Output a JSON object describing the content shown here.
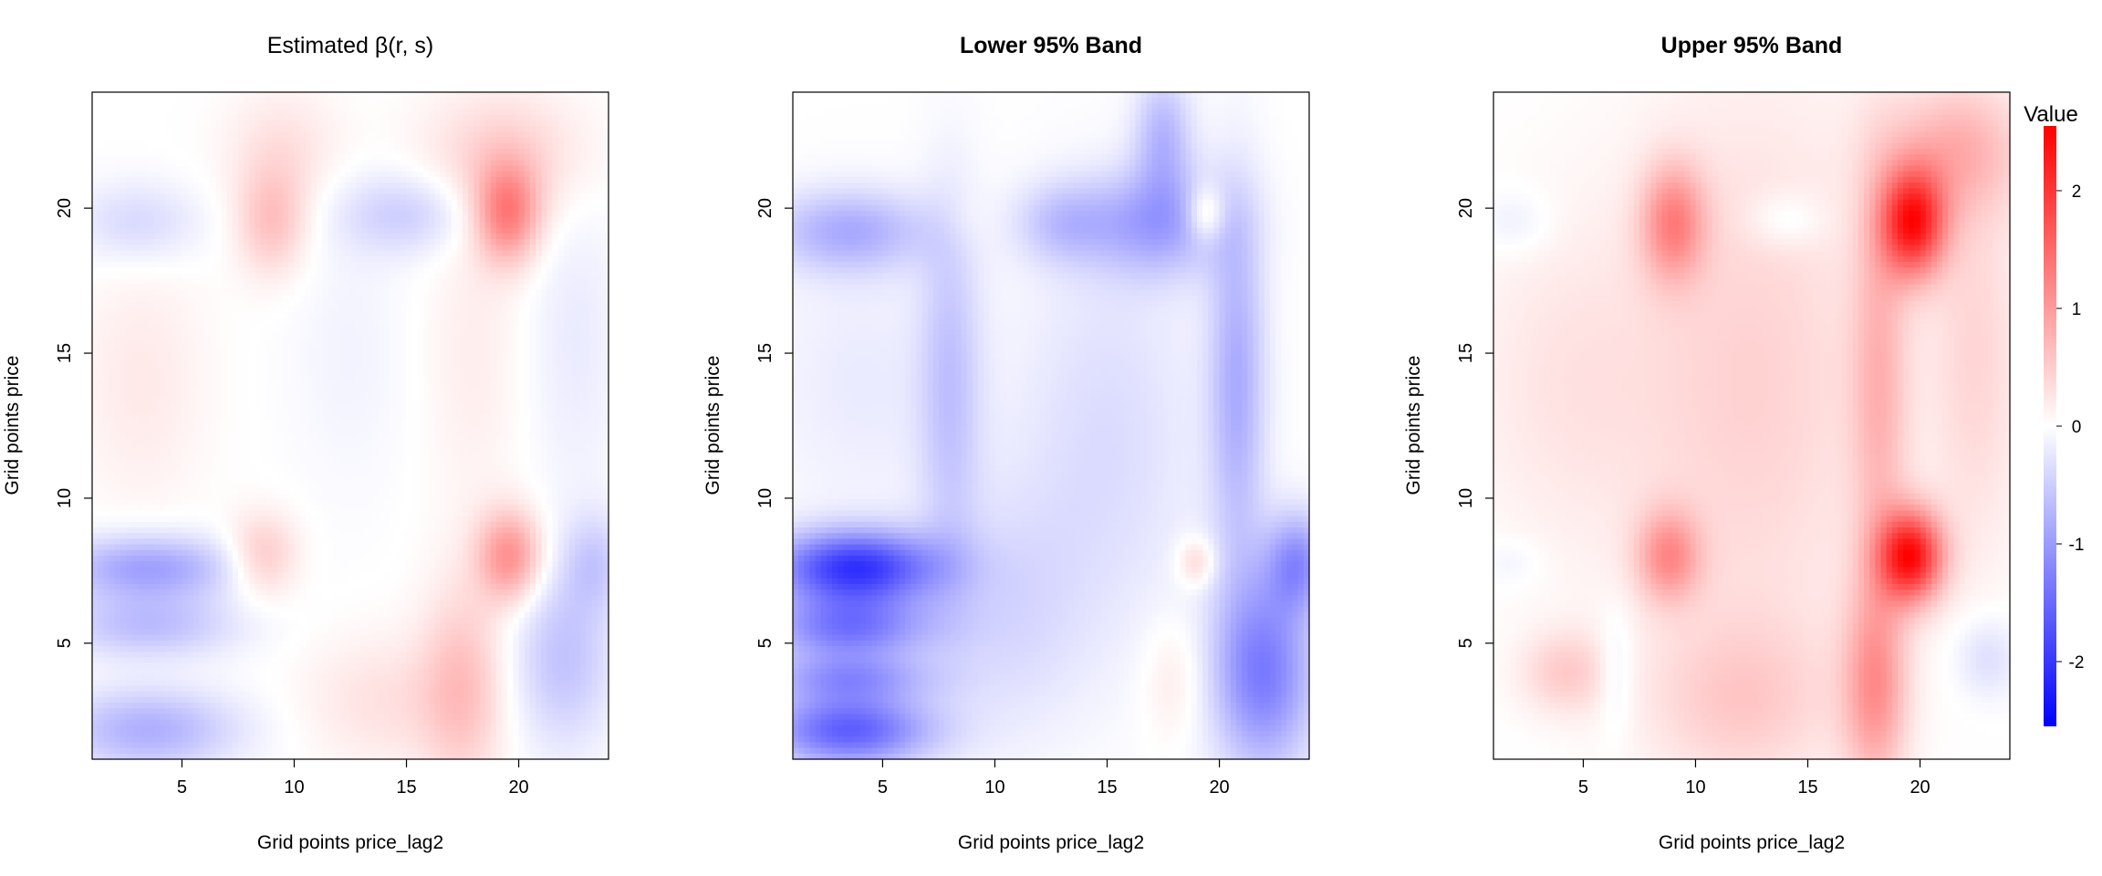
{
  "chart_data": [
    {
      "type": "heatmap",
      "title": "Estimated β(r, s)",
      "title_bold": false,
      "xlabel": "Grid points price_lag2",
      "ylabel": "Grid points price",
      "xlim": [
        1,
        24
      ],
      "ylim": [
        1,
        24
      ],
      "x_ticks": [
        "5",
        "10",
        "15",
        "20"
      ],
      "y_ticks": [
        "5",
        "10",
        "15",
        "20"
      ],
      "blobs": [
        {
          "x": 19.5,
          "y": 19.8,
          "sx": 1.0,
          "sy": 1.2,
          "v": 1.2
        },
        {
          "x": 9.0,
          "y": 19.5,
          "sx": 1.1,
          "sy": 1.3,
          "v": 0.6
        },
        {
          "x": 19.5,
          "y": 21.8,
          "sx": 2.6,
          "sy": 1.6,
          "v": 0.45
        },
        {
          "x": 9.5,
          "y": 22.0,
          "sx": 1.8,
          "sy": 1.5,
          "v": 0.3
        },
        {
          "x": 19.6,
          "y": 8.0,
          "sx": 1.0,
          "sy": 1.1,
          "v": 1.1
        },
        {
          "x": 8.6,
          "y": 8.0,
          "sx": 1.1,
          "sy": 1.0,
          "v": 0.6
        },
        {
          "x": 17.5,
          "y": 3.5,
          "sx": 1.3,
          "sy": 2.5,
          "v": 0.6
        },
        {
          "x": 14.0,
          "y": 3.0,
          "sx": 2.5,
          "sy": 1.6,
          "v": 0.3
        },
        {
          "x": 3.2,
          "y": 14.0,
          "sx": 2.0,
          "sy": 3.0,
          "v": 0.22
        },
        {
          "x": 18.0,
          "y": 15.0,
          "sx": 1.6,
          "sy": 4.0,
          "v": 0.18
        },
        {
          "x": 15.0,
          "y": 19.8,
          "sx": 2.2,
          "sy": 1.0,
          "v": -0.5
        },
        {
          "x": 3.0,
          "y": 19.5,
          "sx": 2.0,
          "sy": 1.0,
          "v": -0.4
        },
        {
          "x": 3.5,
          "y": 7.6,
          "sx": 2.8,
          "sy": 0.8,
          "v": -0.95
        },
        {
          "x": 3.5,
          "y": 5.6,
          "sx": 2.8,
          "sy": 0.8,
          "v": -0.65
        },
        {
          "x": 3.5,
          "y": 2.0,
          "sx": 2.8,
          "sy": 1.0,
          "v": -0.8
        },
        {
          "x": 22.0,
          "y": 4.5,
          "sx": 1.6,
          "sy": 2.2,
          "v": -0.6
        },
        {
          "x": 23.4,
          "y": 7.8,
          "sx": 1.0,
          "sy": 1.2,
          "v": -0.45
        },
        {
          "x": 22.5,
          "y": 15.5,
          "sx": 1.6,
          "sy": 4.0,
          "v": -0.2
        },
        {
          "x": 12.5,
          "y": 15.0,
          "sx": 2.0,
          "sy": 3.5,
          "v": -0.12
        }
      ]
    },
    {
      "type": "heatmap",
      "title": "Lower 95% Band",
      "title_bold": true,
      "xlabel": "Grid points price_lag2",
      "ylabel": "Grid points price",
      "xlim": [
        1,
        24
      ],
      "ylim": [
        1,
        24
      ],
      "x_ticks": [
        "5",
        "10",
        "15",
        "20"
      ],
      "y_ticks": [
        "5",
        "10",
        "15",
        "20"
      ],
      "blobs": [
        {
          "x": 3.8,
          "y": 7.6,
          "sx": 2.6,
          "sy": 0.9,
          "v": -2.0
        },
        {
          "x": 3.5,
          "y": 5.5,
          "sx": 2.6,
          "sy": 0.8,
          "v": -1.3
        },
        {
          "x": 3.5,
          "y": 2.0,
          "sx": 2.6,
          "sy": 0.9,
          "v": -1.6
        },
        {
          "x": 3.5,
          "y": 3.8,
          "sx": 2.6,
          "sy": 0.6,
          "v": -0.9
        },
        {
          "x": 22.0,
          "y": 4.0,
          "sx": 1.6,
          "sy": 2.4,
          "v": -1.3
        },
        {
          "x": 23.5,
          "y": 7.8,
          "sx": 1.0,
          "sy": 1.2,
          "v": -1.0
        },
        {
          "x": 20.8,
          "y": 14.0,
          "sx": 0.9,
          "sy": 4.5,
          "v": -0.8
        },
        {
          "x": 17.3,
          "y": 19.5,
          "sx": 2.2,
          "sy": 1.3,
          "v": -0.9
        },
        {
          "x": 17.5,
          "y": 22.5,
          "sx": 0.9,
          "sy": 1.5,
          "v": -0.7
        },
        {
          "x": 3.5,
          "y": 19.2,
          "sx": 2.5,
          "sy": 1.0,
          "v": -0.8
        },
        {
          "x": 13.0,
          "y": 19.5,
          "sx": 1.5,
          "sy": 1.0,
          "v": -0.55
        },
        {
          "x": 8.0,
          "y": 14.0,
          "sx": 1.0,
          "sy": 4.5,
          "v": -0.55
        },
        {
          "x": 15.0,
          "y": 12.0,
          "sx": 3.0,
          "sy": 5.0,
          "v": -0.35
        },
        {
          "x": 4.0,
          "y": 14.0,
          "sx": 3.0,
          "sy": 3.5,
          "v": -0.2
        },
        {
          "x": 10.5,
          "y": 6.0,
          "sx": 2.5,
          "sy": 3.0,
          "v": -0.35
        },
        {
          "x": 19.4,
          "y": 19.8,
          "sx": 0.6,
          "sy": 0.7,
          "v": 0.7
        },
        {
          "x": 19.0,
          "y": 7.8,
          "sx": 0.6,
          "sy": 0.6,
          "v": 0.5
        },
        {
          "x": 18.0,
          "y": 3.8,
          "sx": 1.0,
          "sy": 1.5,
          "v": 0.25
        },
        {
          "x": 8.6,
          "y": 19.5,
          "sx": 0.8,
          "sy": 0.8,
          "v": 0.12
        }
      ]
    },
    {
      "type": "heatmap",
      "title": "Upper 95% Band",
      "title_bold": true,
      "xlabel": "Grid points price_lag2",
      "ylabel": "Grid points price",
      "xlim": [
        1,
        24
      ],
      "ylim": [
        1,
        24
      ],
      "x_ticks": [
        "5",
        "10",
        "15",
        "20"
      ],
      "y_ticks": [
        "5",
        "10",
        "15",
        "20"
      ],
      "blobs": [
        {
          "x": 19.7,
          "y": 19.5,
          "sx": 1.0,
          "sy": 1.3,
          "v": 2.2
        },
        {
          "x": 19.6,
          "y": 8.0,
          "sx": 1.0,
          "sy": 1.1,
          "v": 2.3
        },
        {
          "x": 9.0,
          "y": 19.5,
          "sx": 1.0,
          "sy": 1.4,
          "v": 1.1
        },
        {
          "x": 8.8,
          "y": 8.0,
          "sx": 1.0,
          "sy": 1.1,
          "v": 1.0
        },
        {
          "x": 18.0,
          "y": 3.5,
          "sx": 1.0,
          "sy": 2.5,
          "v": 1.0
        },
        {
          "x": 18.2,
          "y": 14.0,
          "sx": 0.9,
          "sy": 5.0,
          "v": 0.65
        },
        {
          "x": 21.5,
          "y": 22.0,
          "sx": 2.2,
          "sy": 1.6,
          "v": 0.7
        },
        {
          "x": 12.5,
          "y": 14.0,
          "sx": 4.0,
          "sy": 7.0,
          "v": 0.45
        },
        {
          "x": 12.0,
          "y": 3.0,
          "sx": 3.0,
          "sy": 2.0,
          "v": 0.45
        },
        {
          "x": 4.2,
          "y": 4.0,
          "sx": 1.4,
          "sy": 1.0,
          "v": 0.5
        },
        {
          "x": 4.0,
          "y": 14.0,
          "sx": 3.0,
          "sy": 4.0,
          "v": 0.25
        },
        {
          "x": 22.5,
          "y": 15.0,
          "sx": 1.5,
          "sy": 5.0,
          "v": 0.4
        },
        {
          "x": 14.0,
          "y": 19.6,
          "sx": 1.2,
          "sy": 0.7,
          "v": -0.3
        },
        {
          "x": 2.0,
          "y": 19.5,
          "sx": 1.2,
          "sy": 0.8,
          "v": -0.2
        },
        {
          "x": 6.5,
          "y": 4.0,
          "sx": 0.6,
          "sy": 1.5,
          "v": -0.3
        },
        {
          "x": 23.0,
          "y": 4.5,
          "sx": 1.0,
          "sy": 1.0,
          "v": -0.35
        },
        {
          "x": 1.8,
          "y": 7.8,
          "sx": 1.0,
          "sy": 0.6,
          "v": -0.15
        }
      ]
    }
  ],
  "legend": {
    "title": "Value",
    "ticks": [
      "2",
      "1",
      "0",
      "-1",
      "-2"
    ],
    "range": [
      -2.55,
      2.55
    ],
    "colors": [
      "#0000ff",
      "#ffffff",
      "#ff0000"
    ]
  }
}
